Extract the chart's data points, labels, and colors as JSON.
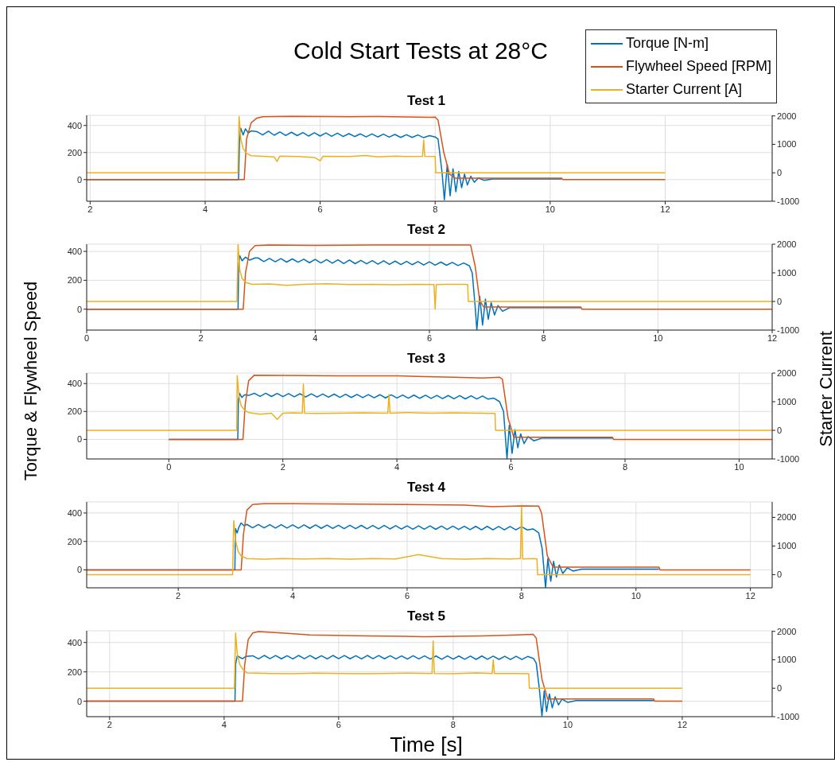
{
  "chart_data": [
    {
      "type": "line",
      "title": "Cold Start Tests at 28°C",
      "subtitle": "Test 1",
      "legend": "top right",
      "grid": true,
      "xlim": [
        1.94,
        13.86
      ],
      "xticks": [
        2,
        4,
        6,
        8,
        10,
        12
      ],
      "ylim": [
        -160,
        475
      ],
      "yticks": [
        0,
        200,
        400
      ],
      "y2lim": [
        -1000,
        2020
      ],
      "y2ticks": [
        -1000,
        0,
        1000,
        2000
      ],
      "series": [
        {
          "name": "Torque [N-m]",
          "color": "#0072bd",
          "x": [
            1.94,
            4.58,
            4.6,
            4.62,
            4.66,
            4.7,
            4.75,
            4.8,
            4.9,
            5.0,
            5.1,
            5.2,
            5.3,
            5.4,
            5.5,
            5.6,
            5.7,
            5.8,
            5.9,
            6.0,
            6.1,
            6.2,
            6.3,
            6.4,
            6.5,
            6.6,
            6.7,
            6.8,
            6.9,
            7.0,
            7.1,
            7.2,
            7.3,
            7.4,
            7.5,
            7.6,
            7.7,
            7.8,
            7.9,
            8.0,
            8.05,
            8.12,
            8.16,
            8.21,
            8.26,
            8.31,
            8.36,
            8.41,
            8.46,
            8.51,
            8.56,
            8.62,
            8.68,
            8.75,
            8.85,
            9.0,
            10.2
          ],
          "values": [
            0,
            0,
            300,
            380,
            330,
            375,
            345,
            360,
            355,
            330,
            358,
            328,
            352,
            326,
            350,
            325,
            348,
            322,
            346,
            322,
            345,
            320,
            343,
            318,
            340,
            318,
            338,
            316,
            338,
            315,
            336,
            314,
            334,
            312,
            332,
            312,
            330,
            310,
            325,
            315,
            300,
            50,
            -150,
            110,
            -120,
            80,
            -90,
            60,
            -60,
            40,
            -40,
            25,
            -20,
            12,
            -5,
            5,
            5
          ]
        },
        {
          "name": "Flywheel Speed [RPM]",
          "color": "#d95319",
          "x": [
            1.94,
            4.68,
            4.72,
            4.8,
            4.9,
            5.0,
            5.5,
            6.0,
            6.5,
            7.0,
            7.5,
            7.9,
            8.0,
            8.05,
            8.15,
            8.25,
            8.35,
            10.2,
            10.22,
            12
          ],
          "values": [
            0,
            0,
            300,
            420,
            455,
            465,
            468,
            466,
            465,
            466,
            463,
            460,
            462,
            440,
            200,
            40,
            10,
            10,
            0,
            0
          ]
        },
        {
          "name": "Starter Current [A]",
          "color": "#edb120",
          "axis": "y2",
          "x": [
            1.94,
            4.57,
            4.59,
            4.62,
            4.66,
            4.72,
            4.8,
            5.0,
            5.2,
            5.25,
            5.3,
            5.6,
            5.9,
            6.0,
            6.05,
            6.5,
            6.8,
            7.0,
            7.3,
            7.5,
            7.78,
            7.8,
            7.82,
            8.0,
            8.01,
            12
          ],
          "values": [
            0,
            0,
            1980,
            1200,
            850,
            680,
            600,
            580,
            560,
            400,
            590,
            570,
            540,
            420,
            580,
            570,
            610,
            560,
            590,
            570,
            580,
            1150,
            580,
            570,
            0,
            0
          ]
        }
      ]
    },
    {
      "type": "line",
      "subtitle": "Test 2",
      "grid": true,
      "xlim": [
        0,
        12
      ],
      "xticks": [
        0,
        2,
        4,
        6,
        8,
        10,
        12
      ],
      "ylim": [
        -145,
        450
      ],
      "yticks": [
        0,
        200,
        400
      ],
      "y2lim": [
        -1000,
        2000
      ],
      "y2ticks": [
        -1000,
        0,
        1000,
        2000
      ],
      "series": [
        {
          "color": "#0072bd",
          "x": [
            0,
            2.65,
            2.66,
            2.68,
            2.72,
            2.78,
            2.85,
            2.95,
            3.0,
            3.1,
            3.2,
            3.3,
            3.4,
            3.5,
            3.6,
            3.7,
            3.8,
            3.9,
            4.0,
            4.1,
            4.2,
            4.3,
            4.4,
            4.5,
            4.6,
            4.7,
            4.8,
            4.9,
            5.0,
            5.1,
            5.2,
            5.3,
            5.4,
            5.5,
            5.6,
            5.7,
            5.8,
            5.9,
            6.0,
            6.1,
            6.2,
            6.3,
            6.4,
            6.5,
            6.6,
            6.7,
            6.75,
            6.8,
            6.83,
            6.88,
            6.93,
            6.98,
            7.03,
            7.08,
            7.14,
            7.2,
            7.28,
            7.4,
            7.6,
            8.65
          ],
          "values": [
            0,
            0,
            300,
            370,
            335,
            360,
            340,
            355,
            355,
            330,
            352,
            328,
            350,
            326,
            348,
            325,
            346,
            322,
            345,
            320,
            343,
            318,
            342,
            316,
            340,
            315,
            338,
            314,
            336,
            312,
            335,
            310,
            333,
            309,
            331,
            308,
            330,
            306,
            328,
            305,
            326,
            304,
            324,
            302,
            320,
            300,
            250,
            20,
            -145,
            90,
            -110,
            70,
            -70,
            45,
            -40,
            25,
            -15,
            10,
            10,
            10
          ]
        },
        {
          "color": "#d95319",
          "x": [
            0,
            2.74,
            2.78,
            2.85,
            2.95,
            3.2,
            4.0,
            5.0,
            6.0,
            6.5,
            6.72,
            6.8,
            6.88,
            6.95,
            8.65,
            8.67,
            12
          ],
          "values": [
            0,
            0,
            250,
            400,
            440,
            445,
            442,
            445,
            445,
            445,
            445,
            300,
            60,
            15,
            15,
            0,
            0
          ]
        },
        {
          "color": "#edb120",
          "axis": "y2",
          "x": [
            0,
            2.63,
            2.65,
            2.68,
            2.72,
            2.8,
            2.9,
            3.2,
            3.5,
            3.8,
            4.2,
            4.6,
            5.0,
            5.4,
            5.8,
            6.08,
            6.1,
            6.12,
            6.3,
            6.6,
            6.67,
            6.68,
            12
          ],
          "values": [
            0,
            0,
            2000,
            1100,
            800,
            650,
            600,
            610,
            560,
            600,
            620,
            590,
            600,
            580,
            600,
            590,
            -270,
            590,
            600,
            600,
            590,
            0,
            0
          ]
        }
      ]
    },
    {
      "type": "line",
      "subtitle": "Test 3",
      "ylabel": "Torque & Flywheel Speed",
      "y2label": "Starter Current",
      "grid": true,
      "xlim": [
        -1.44,
        10.58
      ],
      "xticks": [
        0,
        2,
        4,
        6,
        8,
        10
      ],
      "ylim": [
        -140,
        475
      ],
      "yticks": [
        0,
        200,
        400
      ],
      "y2lim": [
        -1000,
        2000
      ],
      "y2ticks": [
        -1000,
        0,
        1000,
        2000
      ],
      "series": [
        {
          "color": "#0072bd",
          "x": [
            0,
            1.21,
            1.22,
            1.24,
            1.28,
            1.33,
            1.4,
            1.5,
            1.6,
            1.7,
            1.8,
            1.9,
            2.0,
            2.1,
            2.2,
            2.3,
            2.4,
            2.5,
            2.6,
            2.7,
            2.8,
            2.9,
            3.0,
            3.1,
            3.2,
            3.3,
            3.4,
            3.5,
            3.6,
            3.7,
            3.8,
            3.9,
            4.0,
            4.1,
            4.2,
            4.3,
            4.4,
            4.5,
            4.6,
            4.7,
            4.8,
            4.9,
            5.0,
            5.1,
            5.2,
            5.3,
            5.4,
            5.5,
            5.6,
            5.7,
            5.8,
            5.87,
            5.93,
            5.97,
            6.02,
            6.07,
            6.12,
            6.17,
            6.23,
            6.3,
            6.4,
            6.55,
            6.8,
            7.78
          ],
          "values": [
            0,
            0,
            280,
            330,
            300,
            320,
            315,
            330,
            308,
            330,
            307,
            329,
            306,
            328,
            305,
            327,
            304,
            326,
            303,
            325,
            302,
            324,
            301,
            323,
            300,
            322,
            299,
            321,
            298,
            320,
            297,
            319,
            296,
            318,
            295,
            317,
            294,
            316,
            293,
            315,
            292,
            314,
            291,
            313,
            290,
            312,
            289,
            311,
            288,
            295,
            270,
            200,
            -140,
            100,
            -100,
            70,
            -60,
            40,
            -30,
            20,
            -10,
            10,
            10,
            10
          ]
        },
        {
          "color": "#d95319",
          "x": [
            0,
            1.3,
            1.34,
            1.4,
            1.5,
            2.0,
            3.0,
            4.0,
            4.5,
            5.0,
            5.5,
            5.8,
            5.85,
            5.95,
            6.05,
            7.78,
            7.8,
            10.58
          ],
          "values": [
            0,
            0,
            250,
            420,
            460,
            458,
            455,
            455,
            450,
            445,
            440,
            445,
            430,
            150,
            15,
            15,
            0,
            0
          ]
        },
        {
          "color": "#edb120",
          "axis": "y2",
          "x": [
            -1.44,
            1.19,
            1.2,
            1.23,
            1.27,
            1.33,
            1.4,
            1.6,
            1.8,
            1.9,
            2.0,
            2.2,
            2.34,
            2.36,
            2.38,
            2.6,
            3.0,
            3.4,
            3.84,
            3.86,
            3.88,
            4.2,
            4.6,
            5.0,
            5.4,
            5.72,
            5.73,
            10.58
          ],
          "values": [
            0,
            0,
            1910,
            1200,
            850,
            700,
            620,
            560,
            600,
            380,
            600,
            610,
            600,
            1620,
            600,
            590,
            600,
            610,
            600,
            1250,
            600,
            620,
            600,
            610,
            600,
            590,
            0,
            0
          ]
        }
      ]
    },
    {
      "type": "line",
      "subtitle": "Test 4",
      "grid": true,
      "xlim": [
        0.4,
        12.38
      ],
      "xticks": [
        2,
        4,
        6,
        8,
        10,
        12
      ],
      "ylim": [
        -126,
        478
      ],
      "yticks": [
        0,
        200,
        400
      ],
      "y2lim": [
        -460,
        2540
      ],
      "y2ticks": [
        0,
        1000,
        2000
      ],
      "series": [
        {
          "color": "#0072bd",
          "x": [
            0.4,
            2.99,
            3.0,
            3.03,
            3.06,
            3.1,
            3.15,
            3.2,
            3.3,
            3.4,
            3.5,
            3.6,
            3.7,
            3.8,
            3.9,
            4.0,
            4.1,
            4.2,
            4.3,
            4.4,
            4.5,
            4.6,
            4.7,
            4.8,
            4.9,
            5.0,
            5.1,
            5.2,
            5.3,
            5.4,
            5.5,
            5.6,
            5.7,
            5.8,
            5.9,
            6.0,
            6.1,
            6.2,
            6.3,
            6.4,
            6.5,
            6.6,
            6.7,
            6.8,
            6.9,
            7.0,
            7.1,
            7.2,
            7.3,
            7.4,
            7.5,
            7.6,
            7.7,
            7.8,
            7.9,
            8.0,
            8.1,
            8.2,
            8.3,
            8.36,
            8.42,
            8.46,
            8.51,
            8.56,
            8.61,
            8.66,
            8.72,
            8.8,
            8.9,
            9.05,
            9.3,
            10.4
          ],
          "values": [
            0,
            0,
            290,
            260,
            300,
            330,
            310,
            320,
            296,
            319,
            295,
            318,
            294,
            318,
            294,
            317,
            293,
            316,
            292,
            316,
            292,
            315,
            291,
            314,
            290,
            314,
            290,
            313,
            289,
            312,
            288,
            312,
            288,
            311,
            287,
            310,
            286,
            310,
            286,
            309,
            285,
            308,
            284,
            308,
            284,
            307,
            283,
            306,
            282,
            306,
            282,
            305,
            282,
            305,
            282,
            304,
            281,
            288,
            260,
            150,
            -126,
            80,
            -80,
            60,
            -50,
            35,
            -25,
            15,
            -8,
            5,
            5,
            5
          ]
        },
        {
          "color": "#d95319",
          "x": [
            0.4,
            3.1,
            3.14,
            3.2,
            3.3,
            3.5,
            4.0,
            5.0,
            6.0,
            7.0,
            7.5,
            8.0,
            8.3,
            8.35,
            8.45,
            8.55,
            10.4,
            10.42,
            12
          ],
          "values": [
            0,
            0,
            250,
            420,
            460,
            465,
            465,
            463,
            460,
            455,
            445,
            450,
            448,
            400,
            100,
            20,
            20,
            0,
            0
          ]
        },
        {
          "color": "#edb120",
          "axis": "y2",
          "x": [
            0.4,
            2.95,
            2.97,
            3.0,
            3.05,
            3.1,
            3.2,
            3.5,
            3.8,
            4.2,
            4.6,
            5.0,
            5.4,
            5.8,
            6.2,
            6.6,
            7.0,
            7.4,
            7.8,
            7.98,
            8.0,
            8.02,
            8.2,
            8.27,
            8.28,
            12
          ],
          "values": [
            0,
            0,
            1890,
            1200,
            800,
            650,
            560,
            540,
            560,
            550,
            560,
            540,
            560,
            550,
            700,
            560,
            540,
            560,
            550,
            560,
            2370,
            550,
            560,
            550,
            0,
            0
          ]
        }
      ]
    },
    {
      "type": "line",
      "subtitle": "Test 5",
      "xlabel": "Time [s]",
      "grid": true,
      "xlim": [
        1.6,
        13.57
      ],
      "xticks": [
        2,
        4,
        6,
        8,
        10,
        12
      ],
      "ylim": [
        -105,
        480
      ],
      "yticks": [
        0,
        200,
        400
      ],
      "y2lim": [
        -1000,
        2020
      ],
      "y2ticks": [
        -1000,
        0,
        1000,
        2000
      ],
      "series": [
        {
          "color": "#0072bd",
          "x": [
            1.6,
            4.19,
            4.2,
            4.23,
            4.27,
            4.32,
            4.38,
            4.5,
            4.6,
            4.7,
            4.8,
            4.9,
            5.0,
            5.1,
            5.2,
            5.3,
            5.4,
            5.5,
            5.6,
            5.7,
            5.8,
            5.9,
            6.0,
            6.1,
            6.2,
            6.3,
            6.4,
            6.5,
            6.6,
            6.7,
            6.8,
            6.9,
            7.0,
            7.1,
            7.2,
            7.3,
            7.4,
            7.5,
            7.6,
            7.7,
            7.8,
            7.9,
            8.0,
            8.1,
            8.2,
            8.3,
            8.4,
            8.5,
            8.6,
            8.7,
            8.8,
            8.9,
            9.0,
            9.1,
            9.2,
            9.3,
            9.4,
            9.45,
            9.5,
            9.55,
            9.59,
            9.63,
            9.68,
            9.73,
            9.78,
            9.84,
            9.9,
            10.0,
            10.15,
            10.4,
            11.5
          ],
          "values": [
            0,
            0,
            250,
            310,
            300,
            290,
            305,
            310,
            288,
            312,
            290,
            311,
            289,
            310,
            288,
            312,
            290,
            311,
            289,
            310,
            288,
            312,
            290,
            311,
            289,
            310,
            288,
            312,
            290,
            311,
            289,
            310,
            288,
            309,
            287,
            310,
            288,
            309,
            287,
            308,
            286,
            309,
            287,
            308,
            286,
            307,
            285,
            308,
            286,
            307,
            285,
            306,
            284,
            306,
            284,
            305,
            292,
            260,
            100,
            -100,
            70,
            -70,
            50,
            -45,
            30,
            -25,
            15,
            -8,
            5,
            5,
            5
          ]
        },
        {
          "color": "#d95319",
          "x": [
            1.6,
            4.32,
            4.36,
            4.42,
            4.5,
            4.6,
            5.0,
            5.5,
            6.5,
            7.5,
            8.5,
            9.0,
            9.4,
            9.45,
            9.55,
            9.65,
            11.5,
            11.52,
            12
          ],
          "values": [
            0,
            0,
            250,
            420,
            465,
            475,
            465,
            452,
            445,
            440,
            445,
            450,
            455,
            430,
            150,
            15,
            15,
            0,
            0
          ]
        },
        {
          "color": "#edb120",
          "axis": "y2",
          "x": [
            1.6,
            4.18,
            4.2,
            4.23,
            4.27,
            4.33,
            4.4,
            4.8,
            5.2,
            5.6,
            6.0,
            6.4,
            6.8,
            7.2,
            7.63,
            7.65,
            7.67,
            8.0,
            8.4,
            8.68,
            8.7,
            8.72,
            9.0,
            9.32,
            9.33,
            12
          ],
          "values": [
            0,
            0,
            1940,
            1200,
            850,
            650,
            540,
            520,
            510,
            530,
            520,
            510,
            520,
            530,
            520,
            1660,
            520,
            510,
            540,
            520,
            1000,
            520,
            520,
            510,
            0,
            0
          ]
        }
      ]
    }
  ]
}
